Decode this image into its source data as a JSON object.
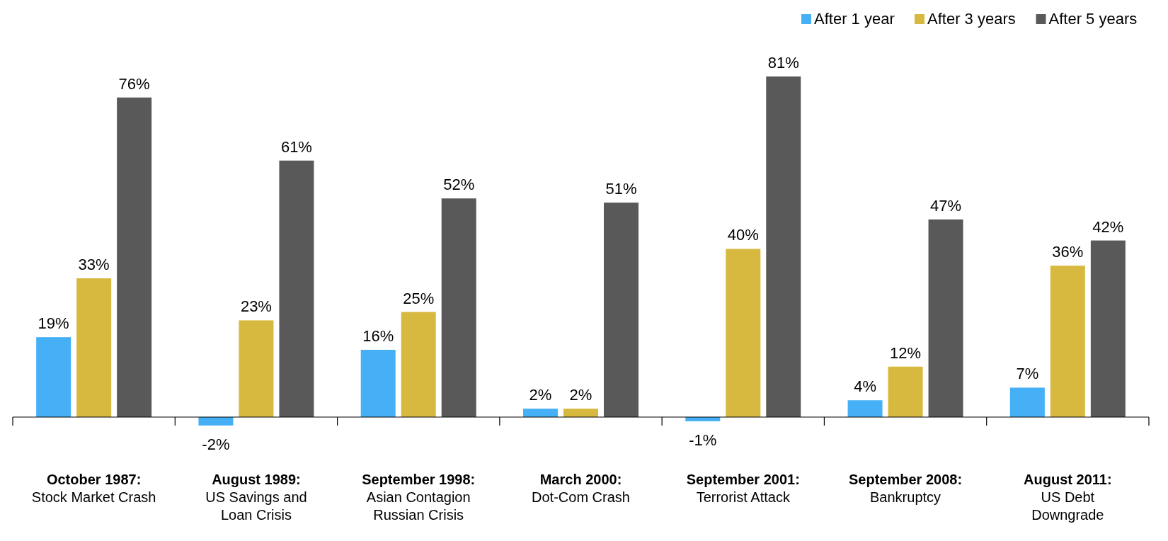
{
  "chart_data": {
    "type": "bar",
    "categories": [
      "October 1987:\nStock Market Crash",
      "August 1989:\nUS Savings and\nLoan Crisis",
      "September 1998:\nAsian Contagion\nRussian Crisis",
      "March 2000:\nDot-Com Crash",
      "September 2001:\nTerrorist Attack",
      "September 2008:\nBankruptcy",
      "August 2011:\nUS Debt\nDowngrade"
    ],
    "series": [
      {
        "name": "After 1 year",
        "color": "#45b0f5",
        "values": [
          19,
          -2,
          16,
          2,
          -1,
          4,
          7
        ],
        "value_labels": [
          "19%",
          "-2%",
          "16%",
          "2%",
          "-1%",
          "4%",
          "7%"
        ]
      },
      {
        "name": "After 3 years",
        "color": "#d8b93f",
        "values": [
          33,
          23,
          25,
          2,
          40,
          12,
          36
        ],
        "value_labels": [
          "33%",
          "23%",
          "25%",
          "2%",
          "40%",
          "12%",
          "36%"
        ]
      },
      {
        "name": "After 5 years",
        "color": "#595959",
        "values": [
          76,
          61,
          52,
          51,
          81,
          47,
          42
        ],
        "value_labels": [
          "76%",
          "61%",
          "52%",
          "51%",
          "81%",
          "47%",
          "42%"
        ]
      }
    ],
    "legend": "top right"
  }
}
